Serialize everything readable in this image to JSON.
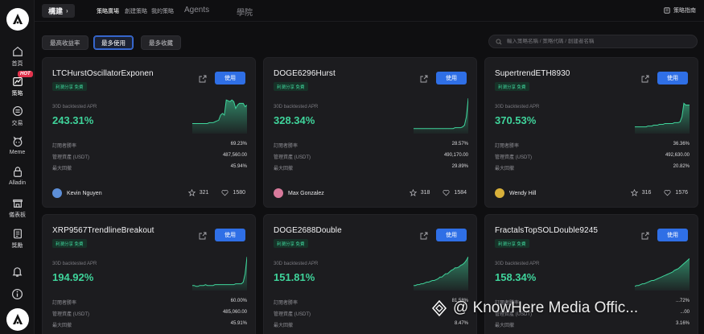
{
  "sidebar": {
    "items": [
      {
        "label": "首頁",
        "icon": "home-icon"
      },
      {
        "label": "策略",
        "icon": "strategy-icon",
        "badge": "HOT"
      },
      {
        "label": "交易",
        "icon": "trade-icon"
      },
      {
        "label": "Meme",
        "icon": "meme-icon"
      },
      {
        "label": "Alladin",
        "icon": "alladin-icon"
      },
      {
        "label": "儀表板",
        "icon": "dashboard-icon"
      },
      {
        "label": "獎勵",
        "icon": "rewards-icon"
      }
    ]
  },
  "topbar": {
    "section": "構建",
    "tabs": [
      "策略廣場",
      "創建策略",
      "我的策略"
    ],
    "active_tab": "策略廣場",
    "big_tabs": [
      "Agents",
      "學院"
    ],
    "guide_label": "策略指南"
  },
  "filters": {
    "items": [
      "最高收益率",
      "最多使用",
      "最多收藏"
    ],
    "active": "最多使用"
  },
  "search": {
    "placeholder": "輸入策略名稱 / 策略代碼 / 創建者名稱",
    "value": ""
  },
  "cards": [
    {
      "name": "LTCHurstOscillatorExponen",
      "tag": "利潤分享 免費",
      "use_label": "使用",
      "apr_label": "30D backtested APR",
      "apr": "243.31%",
      "stats_rows": [
        {
          "k": "訂閱者勝率",
          "v": "69.23%"
        },
        {
          "k": "管理資產 (USDT)",
          "v": "487,560.00"
        },
        {
          "k": "最大回撤",
          "v": "45.94%"
        }
      ],
      "user": "Kevin Nguyen",
      "stars": "321",
      "likes": "1580",
      "spark": [
        12,
        12,
        12,
        12,
        12,
        12,
        12,
        12,
        12,
        13,
        13,
        13,
        14,
        15,
        16,
        22,
        24,
        22,
        40,
        39,
        38,
        40,
        38,
        30,
        34,
        36,
        36,
        36,
        32,
        34
      ]
    },
    {
      "name": "DOGE6296Hurst",
      "tag": "利潤分享 免費",
      "use_label": "使用",
      "apr_label": "30D backtested APR",
      "apr": "328.34%",
      "stats_rows": [
        {
          "k": "訂閱者勝率",
          "v": "28.57%"
        },
        {
          "k": "管理資產 (USDT)",
          "v": "490,170.00"
        },
        {
          "k": "最大回撤",
          "v": "29.89%"
        }
      ],
      "user": "Max Gonzalez",
      "stars": "318",
      "likes": "1584",
      "spark": [
        6,
        6,
        6,
        6,
        6,
        6,
        6,
        6,
        6,
        6,
        6,
        6,
        6,
        6,
        6,
        6,
        6,
        6,
        6,
        6,
        6,
        6,
        7,
        7,
        7,
        7,
        8,
        10,
        20,
        42
      ]
    },
    {
      "name": "SupertrendETH8930",
      "tag": "利潤分享 免費",
      "use_label": "使用",
      "apr_label": "30D backtested APR",
      "apr": "370.53%",
      "stats_rows": [
        {
          "k": "訂閱者勝率",
          "v": "36.36%"
        },
        {
          "k": "管理資產 (USDT)",
          "v": "492,630.00"
        },
        {
          "k": "最大回撤",
          "v": "20.82%"
        }
      ],
      "user": "Wendy Hill",
      "stars": "316",
      "likes": "1576",
      "spark": [
        8,
        8,
        8,
        8,
        8,
        8,
        8,
        9,
        9,
        9,
        10,
        10,
        10,
        11,
        11,
        11,
        12,
        12,
        12,
        12,
        12,
        13,
        13,
        13,
        14,
        20,
        36,
        34,
        34,
        34
      ]
    },
    {
      "name": "XRP9567TrendlineBreakout",
      "tag": "利潤分享 免費",
      "use_label": "使用",
      "apr_label": "30D backtested APR",
      "apr": "194.92%",
      "stats_rows": [
        {
          "k": "訂閱者勝率",
          "v": "60.00%"
        },
        {
          "k": "管理資產 (USDT)",
          "v": "485,060.00"
        },
        {
          "k": "最大回撤",
          "v": "45.91%"
        }
      ],
      "user": "",
      "stars": "",
      "likes": "",
      "spark": [
        6,
        6,
        5,
        5,
        6,
        6,
        6,
        7,
        6,
        6,
        6,
        6,
        7,
        7,
        7,
        7,
        7,
        7,
        7,
        7,
        7,
        7,
        7,
        8,
        8,
        8,
        8,
        10,
        20,
        40
      ]
    },
    {
      "name": "DOGE2688Double",
      "tag": "利潤分享 免費",
      "use_label": "使用",
      "apr_label": "30D backtested APR",
      "apr": "151.81%",
      "stats_rows": [
        {
          "k": "訂閱者勝率",
          "v": "81.58%"
        },
        {
          "k": "管理資產 (USDT)",
          "v": ""
        },
        {
          "k": "最大回撤",
          "v": "8.47%"
        }
      ],
      "user": "",
      "stars": "",
      "likes": "",
      "spark": [
        6,
        6,
        7,
        7,
        8,
        8,
        9,
        10,
        10,
        11,
        12,
        12,
        13,
        14,
        16,
        16,
        18,
        20,
        20,
        22,
        24,
        25,
        27,
        27,
        28,
        30,
        31,
        33,
        36,
        40
      ]
    },
    {
      "name": "FractalsTopSOLDouble9245",
      "tag": "利潤分享 免費",
      "use_label": "使用",
      "apr_label": "30D backtested APR",
      "apr": "158.34%",
      "stats_rows": [
        {
          "k": "訂閱者勝率",
          "v": "...72%"
        },
        {
          "k": "管理資產 (USDT)",
          "v": "...00"
        },
        {
          "k": "最大回撤",
          "v": "3.16%"
        }
      ],
      "user": "",
      "stars": "",
      "likes": "",
      "spark": [
        5,
        6,
        6,
        7,
        8,
        8,
        9,
        10,
        11,
        12,
        12,
        13,
        14,
        15,
        16,
        17,
        18,
        19,
        20,
        21,
        22,
        24,
        25,
        26,
        28,
        30,
        32,
        34,
        36,
        38
      ]
    }
  ],
  "watermark": "@ KnowHere Media Offic...",
  "colors": {
    "accent": "#2f6fe6",
    "positive": "#3fd49b",
    "bg": "#0f0f11",
    "card": "#1c1c1f"
  }
}
